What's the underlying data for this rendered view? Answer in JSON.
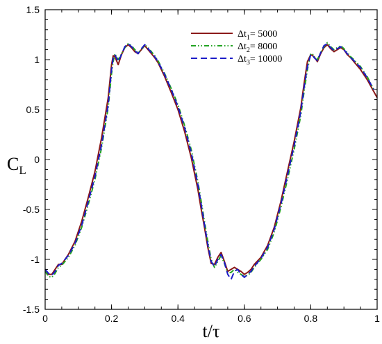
{
  "chart_data": {
    "type": "line",
    "xlabel": "t/τ",
    "ylabel_main": "C",
    "ylabel_sub": "L",
    "xlim": [
      0,
      1
    ],
    "ylim": [
      -1.5,
      1.5
    ],
    "xticks": [
      0,
      0.2,
      0.4,
      0.6,
      0.8,
      1
    ],
    "xtick_labels": [
      "0",
      "0.2",
      "0.4",
      "0.6",
      "0.8",
      "1"
    ],
    "yticks": [
      -1.5,
      -1,
      -0.5,
      0,
      0.5,
      1,
      1.5
    ],
    "ytick_labels": [
      "-1.5",
      "-1",
      "-0.5",
      "0",
      "0.5",
      "1",
      "1.5"
    ],
    "legend_position": "top-right",
    "series": [
      {
        "name": "Δt1= 5000",
        "label_prefix": "Δt",
        "label_sub": "1",
        "label_suffix": "= 5000",
        "color": "#8b1a1a",
        "style": "solid",
        "x": [
          0,
          0.01,
          0.02,
          0.03,
          0.04,
          0.05,
          0.07,
          0.09,
          0.11,
          0.13,
          0.15,
          0.17,
          0.19,
          0.2,
          0.205,
          0.21,
          0.22,
          0.23,
          0.24,
          0.25,
          0.26,
          0.27,
          0.28,
          0.29,
          0.3,
          0.31,
          0.32,
          0.33,
          0.34,
          0.36,
          0.38,
          0.4,
          0.42,
          0.44,
          0.46,
          0.47,
          0.48,
          0.49,
          0.5,
          0.51,
          0.52,
          0.53,
          0.54,
          0.55,
          0.56,
          0.57,
          0.58,
          0.59,
          0.6,
          0.61,
          0.62,
          0.63,
          0.65,
          0.67,
          0.69,
          0.71,
          0.73,
          0.75,
          0.77,
          0.78,
          0.79,
          0.8,
          0.805,
          0.81,
          0.82,
          0.83,
          0.84,
          0.85,
          0.86,
          0.87,
          0.88,
          0.89,
          0.9,
          0.91,
          0.92,
          0.93,
          0.95,
          0.97,
          0.99,
          1.0
        ],
        "y": [
          -1.1,
          -1.15,
          -1.15,
          -1.1,
          -1.05,
          -1.05,
          -0.95,
          -0.82,
          -0.62,
          -0.38,
          -0.12,
          0.22,
          0.62,
          0.95,
          1.04,
          1.03,
          0.95,
          1.05,
          1.12,
          1.15,
          1.12,
          1.08,
          1.06,
          1.1,
          1.14,
          1.1,
          1.06,
          1.02,
          0.97,
          0.83,
          0.67,
          0.5,
          0.28,
          0.02,
          -0.3,
          -0.5,
          -0.68,
          -0.88,
          -1.04,
          -1.05,
          -0.98,
          -0.93,
          -1.02,
          -1.12,
          -1.1,
          -1.08,
          -1.1,
          -1.12,
          -1.15,
          -1.13,
          -1.1,
          -1.05,
          -0.98,
          -0.86,
          -0.68,
          -0.42,
          -0.12,
          0.18,
          0.52,
          0.76,
          0.98,
          1.05,
          1.04,
          1.03,
          0.98,
          1.06,
          1.12,
          1.15,
          1.11,
          1.08,
          1.1,
          1.12,
          1.1,
          1.05,
          1.02,
          0.98,
          0.9,
          0.8,
          0.68,
          0.62
        ]
      },
      {
        "name": "Δt2= 8000",
        "label_prefix": "Δt",
        "label_sub": "2",
        "label_suffix": "= 8000",
        "color": "#22a322",
        "style": "dashdotdot",
        "x": [
          0,
          0.01,
          0.02,
          0.03,
          0.04,
          0.05,
          0.07,
          0.09,
          0.11,
          0.13,
          0.15,
          0.17,
          0.19,
          0.2,
          0.205,
          0.21,
          0.22,
          0.23,
          0.24,
          0.25,
          0.26,
          0.27,
          0.28,
          0.29,
          0.3,
          0.31,
          0.32,
          0.33,
          0.34,
          0.36,
          0.38,
          0.4,
          0.42,
          0.44,
          0.46,
          0.47,
          0.48,
          0.49,
          0.5,
          0.51,
          0.52,
          0.53,
          0.54,
          0.55,
          0.56,
          0.57,
          0.58,
          0.59,
          0.6,
          0.61,
          0.62,
          0.63,
          0.65,
          0.67,
          0.69,
          0.71,
          0.73,
          0.75,
          0.77,
          0.78,
          0.79,
          0.8,
          0.805,
          0.81,
          0.82,
          0.83,
          0.84,
          0.85,
          0.86,
          0.87,
          0.88,
          0.89,
          0.9,
          0.91,
          0.92,
          0.93,
          0.95,
          0.97,
          0.99
        ],
        "y": [
          -1.12,
          -1.17,
          -1.18,
          -1.14,
          -1.08,
          -1.06,
          -0.98,
          -0.86,
          -0.68,
          -0.45,
          -0.2,
          0.12,
          0.52,
          0.86,
          0.98,
          1.06,
          1.0,
          1.06,
          1.12,
          1.16,
          1.14,
          1.1,
          1.07,
          1.1,
          1.15,
          1.12,
          1.08,
          1.04,
          0.99,
          0.86,
          0.71,
          0.55,
          0.34,
          0.1,
          -0.22,
          -0.42,
          -0.62,
          -0.82,
          -1.0,
          -1.08,
          -1.02,
          -0.96,
          -1.04,
          -1.14,
          -1.13,
          -1.1,
          -1.13,
          -1.15,
          -1.17,
          -1.16,
          -1.13,
          -1.08,
          -1.0,
          -0.9,
          -0.73,
          -0.48,
          -0.2,
          0.1,
          0.44,
          0.68,
          0.9,
          1.06,
          1.06,
          1.03,
          1.0,
          1.07,
          1.13,
          1.17,
          1.13,
          1.1,
          1.12,
          1.14,
          1.11,
          1.07,
          1.03,
          1.0,
          0.93,
          0.83,
          0.7
        ]
      },
      {
        "name": "Δt3= 10000",
        "label_prefix": "Δt",
        "label_sub": "3",
        "label_suffix": "= 10000",
        "color": "#1c1cc8",
        "style": "dashed",
        "x": [
          0,
          0.01,
          0.02,
          0.03,
          0.04,
          0.05,
          0.07,
          0.09,
          0.11,
          0.13,
          0.15,
          0.17,
          0.19,
          0.2,
          0.205,
          0.21,
          0.22,
          0.23,
          0.24,
          0.25,
          0.26,
          0.27,
          0.28,
          0.29,
          0.3,
          0.31,
          0.32,
          0.33,
          0.34,
          0.36,
          0.38,
          0.4,
          0.42,
          0.44,
          0.46,
          0.47,
          0.48,
          0.49,
          0.5,
          0.51,
          0.52,
          0.53,
          0.54,
          0.55,
          0.56,
          0.57,
          0.58,
          0.59,
          0.6,
          0.61,
          0.62,
          0.63,
          0.65,
          0.67,
          0.69,
          0.71,
          0.73,
          0.75,
          0.77,
          0.78,
          0.79,
          0.8,
          0.805,
          0.81,
          0.82,
          0.83,
          0.84,
          0.85,
          0.86,
          0.87,
          0.88,
          0.89,
          0.9,
          0.91,
          0.92,
          0.93,
          0.95,
          0.97,
          0.99
        ],
        "y": [
          -1.1,
          -1.14,
          -1.16,
          -1.12,
          -1.06,
          -1.04,
          -0.96,
          -0.84,
          -0.66,
          -0.42,
          -0.17,
          0.15,
          0.55,
          0.9,
          1.02,
          1.05,
          0.98,
          1.05,
          1.13,
          1.16,
          1.13,
          1.09,
          1.06,
          1.11,
          1.15,
          1.11,
          1.07,
          1.03,
          0.98,
          0.85,
          0.7,
          0.53,
          0.32,
          0.07,
          -0.25,
          -0.45,
          -0.65,
          -0.85,
          -1.02,
          -1.07,
          -1.0,
          -0.95,
          -1.03,
          -1.15,
          -1.2,
          -1.12,
          -1.1,
          -1.15,
          -1.18,
          -1.15,
          -1.12,
          -1.07,
          -0.99,
          -0.88,
          -0.7,
          -0.45,
          -0.16,
          0.14,
          0.48,
          0.72,
          0.93,
          1.05,
          1.05,
          1.02,
          0.99,
          1.07,
          1.14,
          1.16,
          1.12,
          1.09,
          1.11,
          1.13,
          1.1,
          1.06,
          1.02,
          0.99,
          0.92,
          0.82,
          0.7
        ]
      }
    ]
  }
}
